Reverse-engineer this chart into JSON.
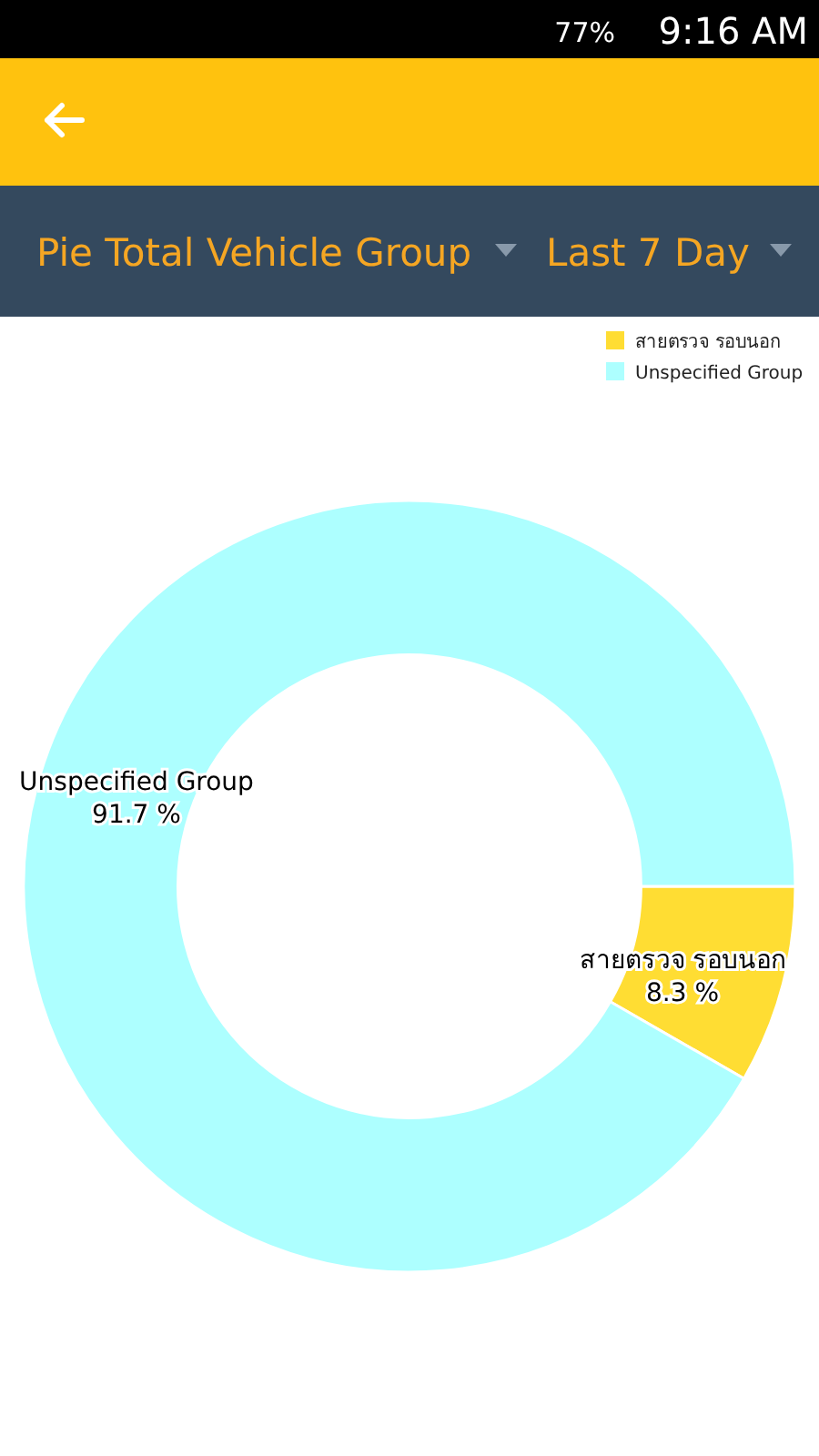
{
  "chart_data": {
    "type": "donut",
    "title": "Pie Total Vehicle Group",
    "subtitle": "Last 7 Day",
    "categories": [
      "สายตรวจ รอบนอก",
      "Unspecified Group"
    ],
    "values": [
      8.3,
      91.7
    ],
    "colors": [
      "#ffdd33",
      "#adffff"
    ],
    "value_labels": [
      "8.3 %",
      "91.7 %"
    ],
    "legend": "top right",
    "annotations": [
      "77%",
      "9:16 AM"
    ]
  }
}
